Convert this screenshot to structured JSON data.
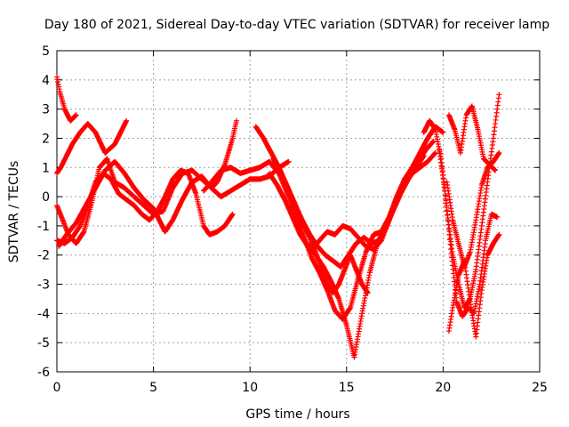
{
  "chart_data": {
    "type": "scatter",
    "title": "Day 180 of 2021, Sidereal Day-to-day VTEC variation (SDTVAR) for receiver lamp",
    "xlabel": "GPS time / hours",
    "ylabel": "SDTVAR / TECUs",
    "xlim": [
      0,
      25
    ],
    "ylim": [
      -6,
      5
    ],
    "xticks": [
      0,
      5,
      10,
      15,
      20,
      25
    ],
    "yticks": [
      -6,
      -5,
      -4,
      -3,
      -2,
      -1,
      0,
      1,
      2,
      3,
      4,
      5
    ],
    "grid": true,
    "legend": "none",
    "marker": "+",
    "color": "#ff0000",
    "series": [
      {
        "x": [
          0.0,
          0.15,
          0.4,
          0.7,
          1.0
        ],
        "y": [
          4.1,
          3.6,
          3.0,
          2.6,
          2.8
        ]
      },
      {
        "x": [
          0.0,
          0.2,
          0.5,
          0.8,
          1.2,
          1.6,
          2.0,
          2.5,
          3.0,
          3.6
        ],
        "y": [
          0.8,
          1.0,
          1.4,
          1.8,
          2.2,
          2.5,
          2.2,
          1.5,
          1.8,
          2.6
        ]
      },
      {
        "x": [
          0.0,
          0.3,
          0.6,
          1.0,
          1.4,
          1.8,
          2.2,
          2.6,
          3.0,
          3.5,
          4.0,
          4.5,
          5.0,
          5.5,
          6.0,
          6.5,
          7.0,
          7.5,
          8.0,
          8.3,
          8.7,
          9.1,
          9.3
        ],
        "y": [
          -0.3,
          -0.8,
          -1.3,
          -1.6,
          -1.2,
          -0.2,
          1.0,
          1.3,
          0.5,
          0.3,
          0.0,
          -0.3,
          -0.6,
          -0.5,
          0.3,
          0.8,
          0.9,
          0.6,
          0.3,
          0.5,
          1.1,
          2.0,
          2.6
        ]
      },
      {
        "x": [
          0.0,
          0.4,
          0.8,
          1.2,
          1.6,
          2.0,
          2.4,
          2.8,
          3.2,
          3.6,
          4.0,
          4.4,
          4.8,
          5.2,
          5.6,
          6.0,
          6.4,
          6.8,
          7.2,
          7.6,
          7.9,
          8.3,
          8.7,
          9.1
        ],
        "y": [
          -1.5,
          -1.6,
          -1.4,
          -1.0,
          -0.3,
          0.5,
          0.8,
          0.6,
          0.1,
          -0.1,
          -0.3,
          -0.6,
          -0.8,
          -0.5,
          0.0,
          0.6,
          0.9,
          0.8,
          0.1,
          -1.0,
          -1.3,
          -1.2,
          -1.0,
          -0.6
        ]
      },
      {
        "x": [
          0.1,
          0.5,
          1.0,
          1.5,
          2.0,
          2.5,
          3.0,
          3.5,
          4.0,
          4.5,
          5.0,
          5.3,
          5.6,
          6.0,
          6.5,
          7.0,
          7.5,
          8.0,
          8.5,
          9.0,
          9.5,
          10.0,
          10.5,
          11.0,
          11.5,
          12.0
        ],
        "y": [
          -1.7,
          -1.3,
          -0.9,
          -0.3,
          0.3,
          0.9,
          1.2,
          0.8,
          0.3,
          -0.1,
          -0.4,
          -0.8,
          -1.2,
          -0.8,
          -0.1,
          0.5,
          0.7,
          0.3,
          0.0,
          0.2,
          0.4,
          0.6,
          0.6,
          0.7,
          1.0,
          1.2
        ]
      },
      {
        "x": [
          7.6,
          8.0,
          8.5,
          9.0,
          9.5,
          10.0,
          10.5,
          11.0,
          11.5,
          12.0,
          12.4,
          12.8,
          13.2,
          13.6,
          14.0,
          14.4,
          14.8,
          15.2,
          15.6,
          16.0,
          16.4,
          16.8,
          17.2,
          17.6,
          18.0,
          18.4,
          18.8,
          19.2,
          19.6
        ],
        "y": [
          0.2,
          0.5,
          0.9,
          1.0,
          0.8,
          0.9,
          1.0,
          1.2,
          0.8,
          0.0,
          -0.8,
          -1.5,
          -1.8,
          -1.5,
          -1.2,
          -1.3,
          -1.0,
          -1.1,
          -1.4,
          -1.7,
          -1.8,
          -1.5,
          -0.8,
          0.0,
          0.5,
          0.8,
          1.0,
          1.2,
          1.5
        ]
      },
      {
        "x": [
          10.3,
          10.7,
          11.1,
          11.5,
          11.9,
          12.3,
          12.7,
          13.1,
          13.5,
          13.9,
          14.3,
          14.7,
          15.1,
          15.5,
          15.9,
          16.3,
          16.7,
          17.1,
          17.5,
          17.9,
          18.3,
          18.7,
          19.1,
          19.5
        ],
        "y": [
          2.4,
          2.0,
          1.5,
          1.0,
          0.4,
          -0.2,
          -0.8,
          -1.3,
          -1.7,
          -2.0,
          -2.2,
          -2.4,
          -2.0,
          -1.6,
          -1.4,
          -1.6,
          -1.5,
          -1.0,
          -0.3,
          0.3,
          0.8,
          1.2,
          1.6,
          1.9
        ]
      },
      {
        "x": [
          11.2,
          11.6,
          12.0,
          12.4,
          12.8,
          13.2,
          13.6,
          14.0,
          14.4,
          14.8,
          15.2,
          15.6,
          16.0,
          16.4,
          16.8,
          17.2,
          17.6,
          18.0,
          18.4,
          18.8,
          19.2,
          19.6,
          20.0
        ],
        "y": [
          1.3,
          0.8,
          0.2,
          -0.6,
          -1.4,
          -2.1,
          -2.6,
          -3.2,
          -3.9,
          -4.2,
          -3.8,
          -2.8,
          -1.9,
          -1.3,
          -1.2,
          -0.7,
          0.0,
          0.6,
          1.0,
          1.5,
          2.0,
          2.4,
          2.2
        ]
      },
      {
        "x": [
          11.0,
          11.4,
          11.8,
          12.2,
          12.6,
          13.0,
          13.4,
          13.8,
          14.2,
          14.6,
          15.0,
          15.4,
          15.8,
          16.2,
          16.6,
          17.0,
          17.4,
          17.8,
          18.2,
          18.6,
          19.0
        ],
        "y": [
          0.8,
          0.4,
          -0.1,
          -0.7,
          -1.3,
          -1.7,
          -2.0,
          -2.4,
          -2.9,
          -3.5,
          -4.4,
          -5.5,
          -4.0,
          -2.6,
          -1.6,
          -1.0,
          -0.5,
          0.1,
          0.6,
          1.0,
          1.4
        ]
      },
      {
        "x": [
          12.2,
          12.5,
          12.8,
          13.1,
          13.4,
          13.7,
          14.0,
          14.3,
          14.6,
          14.9,
          15.2,
          15.5,
          15.8,
          16.1
        ],
        "y": [
          -0.3,
          -0.6,
          -1.0,
          -1.4,
          -1.9,
          -2.5,
          -3.0,
          -3.3,
          -3.0,
          -2.5,
          -2.0,
          -2.5,
          -3.0,
          -3.3
        ]
      },
      {
        "x": [
          19.0,
          19.3,
          19.6,
          19.9,
          20.2,
          20.5,
          20.8,
          21.1,
          21.4,
          21.7,
          22.0,
          22.3,
          22.6,
          22.9
        ],
        "y": [
          2.2,
          2.6,
          2.3,
          1.3,
          -0.5,
          -2.0,
          -3.0,
          -3.8,
          -3.5,
          -2.5,
          -1.0,
          0.5,
          2.0,
          3.5
        ]
      },
      {
        "x": [
          19.8,
          20.1,
          20.4,
          20.7,
          21.0,
          21.3,
          21.6,
          21.9,
          22.2,
          22.5,
          22.8
        ],
        "y": [
          1.6,
          0.2,
          -1.8,
          -3.6,
          -4.1,
          -3.8,
          -4.0,
          -3.0,
          -1.5,
          -0.6,
          -0.7
        ]
      },
      {
        "x": [
          20.3,
          20.5,
          20.8,
          21.1,
          21.4,
          21.7,
          22.0,
          22.3,
          22.6,
          22.9
        ],
        "y": [
          -4.6,
          -3.8,
          -2.7,
          -2.2,
          -3.6,
          -4.8,
          -3.2,
          -2.0,
          -1.6,
          -1.3
        ]
      },
      {
        "x": [
          20.2,
          20.5,
          20.8,
          21.1,
          21.4,
          21.7,
          22.0,
          22.3,
          22.6,
          22.9
        ],
        "y": [
          0.5,
          -0.8,
          -1.6,
          -2.4,
          -1.9,
          -0.8,
          0.4,
          1.0,
          1.2,
          1.5
        ]
      },
      {
        "x": [
          20.3,
          20.6,
          20.9,
          21.2,
          21.5,
          21.8,
          22.1,
          22.4,
          22.7
        ],
        "y": [
          2.8,
          2.3,
          1.5,
          2.8,
          3.1,
          2.3,
          1.3,
          1.1,
          0.9
        ]
      }
    ]
  }
}
